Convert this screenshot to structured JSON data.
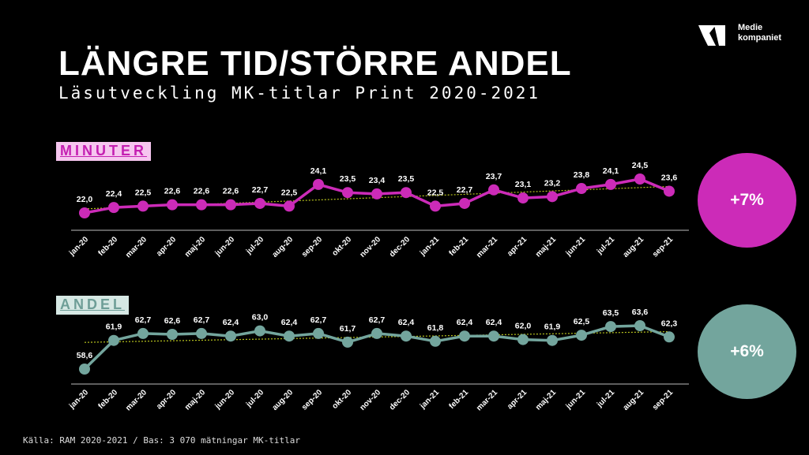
{
  "header": {
    "title": "LÄNGRE TID/STÖRRE ANDEL",
    "subtitle": "Läsutveckling MK-titlar Print 2020-2021"
  },
  "logo": {
    "line1": "Medie",
    "line2": "kompaniet"
  },
  "sections": {
    "minuter": {
      "label": "MINUTER",
      "change": "+7%"
    },
    "andel": {
      "label": "ANDEL",
      "change": "+6%"
    }
  },
  "source": "Källa: RAM 2020-2021 / Bas: 3 070 mätningar MK-titlar",
  "colors": {
    "minuter": "#cc2bb8",
    "andel": "#73a59d",
    "trendline": "#b8c41e",
    "background": "#000000"
  },
  "chart_data": [
    {
      "type": "line",
      "categories": [
        "jan-20",
        "feb-20",
        "mar-20",
        "apr-20",
        "maj-20",
        "jun-20",
        "jul-20",
        "aug-20",
        "sep-20",
        "okt-20",
        "nov-20",
        "dec-20",
        "jan-21",
        "feb-21",
        "mar-21",
        "apr-21",
        "maj-21",
        "jun-21",
        "jul-21",
        "aug-21",
        "sep-21"
      ],
      "series": [
        {
          "values": [
            22.0,
            22.4,
            22.5,
            22.6,
            22.6,
            22.6,
            22.7,
            22.5,
            24.1,
            23.5,
            23.4,
            23.5,
            22.5,
            22.7,
            23.7,
            23.1,
            23.2,
            23.8,
            24.1,
            24.5,
            23.6
          ]
        }
      ],
      "data_labels": [
        "22,0",
        "22,4",
        "22,5",
        "22,6",
        "22,6",
        "22,6",
        "22,7",
        "22,5",
        "24,1",
        "23,5",
        "23,4",
        "23,5",
        "22,5",
        "22,7",
        "23,7",
        "23,1",
        "23,2",
        "23,8",
        "24,1",
        "24,5",
        "23,6"
      ],
      "trendline": "linear, dotted",
      "ylim": [
        19,
        26
      ]
    },
    {
      "type": "line",
      "categories": [
        "jan-20",
        "feb-20",
        "mar-20",
        "apr-20",
        "maj-20",
        "jun-20",
        "jul-20",
        "aug-20",
        "sep-20",
        "okt-20",
        "nov-20",
        "dec-20",
        "jan-21",
        "feb-21",
        "mar-21",
        "apr-21",
        "maj-21",
        "jun-21",
        "jul-21",
        "aug-21",
        "sep-21"
      ],
      "series": [
        {
          "values": [
            58.6,
            61.9,
            62.7,
            62.6,
            62.7,
            62.4,
            63.0,
            62.4,
            62.7,
            61.7,
            62.7,
            62.4,
            61.8,
            62.4,
            62.4,
            62.0,
            61.9,
            62.5,
            63.5,
            63.6,
            62.3
          ]
        }
      ],
      "data_labels": [
        "58,6",
        "61,9",
        "62,7",
        "62,6",
        "62,7",
        "62,4",
        "63,0",
        "62,4",
        "62,7",
        "61,7",
        "62,7",
        "62,4",
        "61,8",
        "62,4",
        "62,4",
        "62,0",
        "61,9",
        "62,5",
        "63,5",
        "63,6",
        "62,3"
      ],
      "trendline": "linear, dotted",
      "ylim": [
        55,
        66
      ]
    }
  ]
}
